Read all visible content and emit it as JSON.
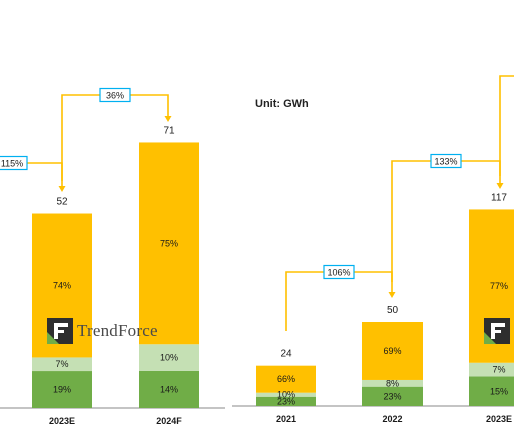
{
  "unit_label": "Unit: GWh",
  "watermark": "TrendForce",
  "watermark_logo": "F",
  "colors": {
    "top": "#FFC000",
    "mid": "#C5E0B4",
    "bottom": "#70AD47",
    "line": "#FFC000",
    "callout_border": "#00B0F0",
    "axis": "#888888"
  },
  "chart_data": [
    {
      "type": "bar",
      "stacked": true,
      "categories": [
        "2023E",
        "2024F"
      ],
      "totals": [
        52,
        71
      ],
      "segments_percent": [
        {
          "bottom": "19%",
          "mid": "7%",
          "top": "74%"
        },
        {
          "bottom": "14%",
          "mid": "10%",
          "top": "75%"
        }
      ],
      "growth_callouts": [
        {
          "label": "115%",
          "target": "2023E"
        },
        {
          "label": "36%",
          "from": "2023E",
          "to": "2024F"
        }
      ]
    },
    {
      "type": "bar",
      "stacked": true,
      "categories": [
        "2021",
        "2022",
        "2023E"
      ],
      "totals": [
        24,
        50,
        117
      ],
      "segments_percent": [
        {
          "bottom": "23%",
          "mid": "10%",
          "top": "66%"
        },
        {
          "bottom": "23%",
          "mid": "8%",
          "top": "69%"
        },
        {
          "bottom": "15%",
          "mid": "7%",
          "top": "77%"
        }
      ],
      "growth_callouts": [
        {
          "label": "106%",
          "from": "2021",
          "to": "2022"
        },
        {
          "label": "133%",
          "from": "2022",
          "to": "2023E"
        }
      ]
    }
  ]
}
